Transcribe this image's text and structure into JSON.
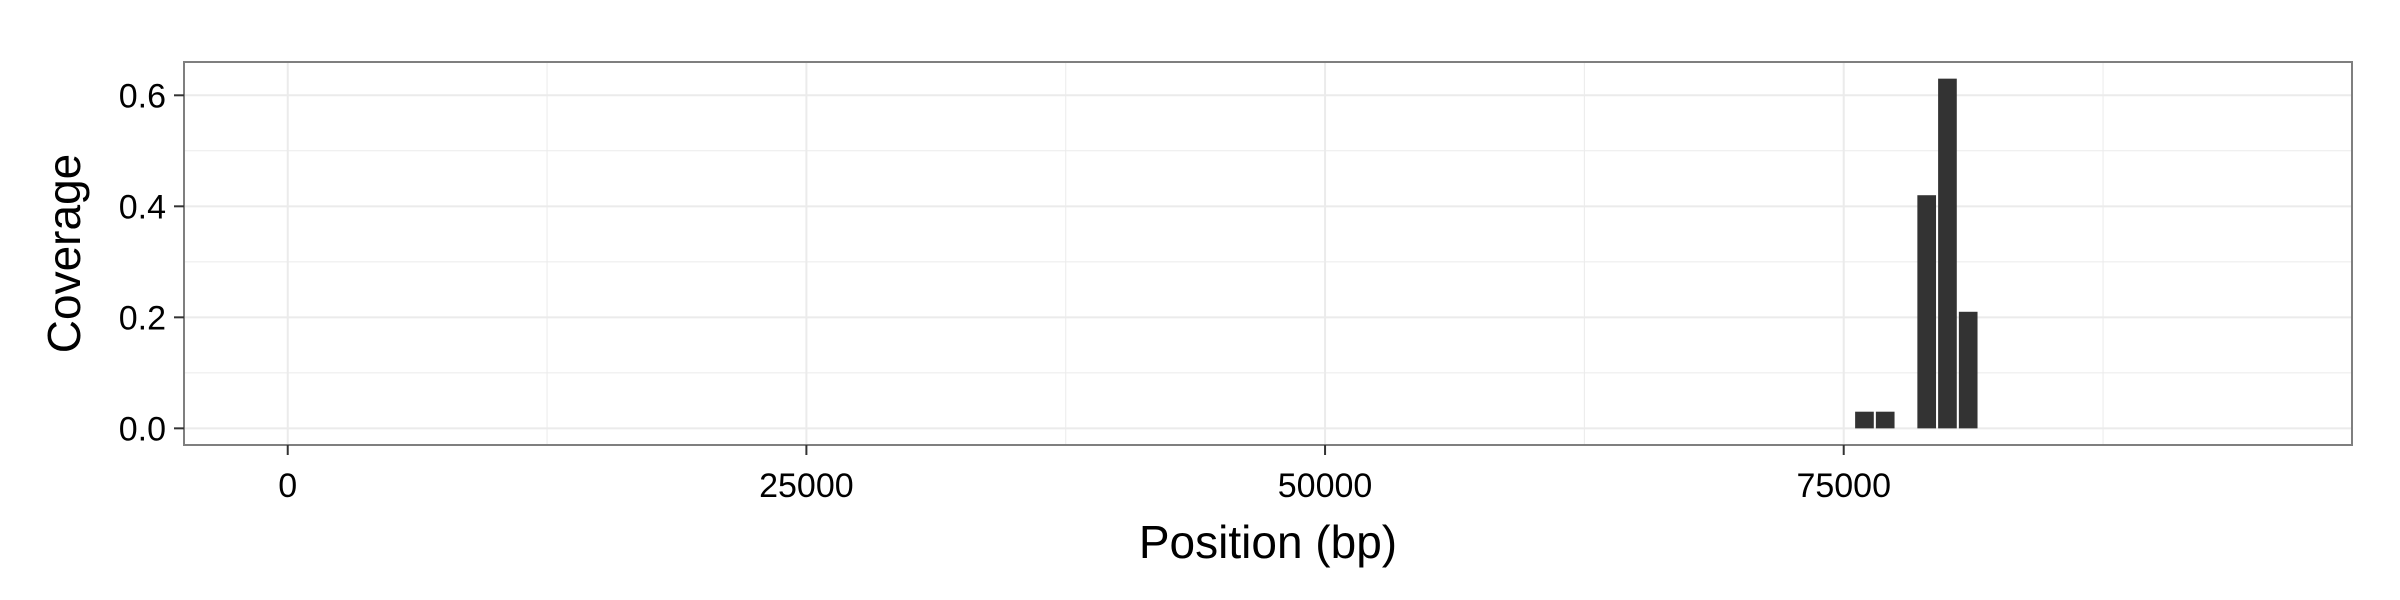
{
  "chart_data": {
    "type": "bar",
    "title": "",
    "xlabel": "Position (bp)",
    "ylabel": "Coverage",
    "xlim": [
      -5000,
      99500
    ],
    "ylim": [
      -0.03,
      0.66
    ],
    "x_ticks": [
      0,
      25000,
      50000,
      75000
    ],
    "x_tick_labels": [
      "0",
      "25000",
      "50000",
      "75000"
    ],
    "y_ticks": [
      0.0,
      0.2,
      0.4,
      0.6
    ],
    "y_tick_labels": [
      "0.0",
      "0.2",
      "0.4",
      "0.6"
    ],
    "x_minor_ticks": [
      12500,
      37500,
      62500,
      87500
    ],
    "y_minor_ticks": [
      0.1,
      0.3,
      0.5
    ],
    "bin_width": 1000,
    "grid": true,
    "bar_color": "#333333",
    "panel_border_color": "#7f7f7f",
    "grid_color": "#ebebeb",
    "series": [
      {
        "x": [
          76000,
          77000,
          79000,
          80000,
          81000
        ],
        "values": [
          0.03,
          0.03,
          0.42,
          0.63,
          0.21
        ]
      }
    ]
  }
}
